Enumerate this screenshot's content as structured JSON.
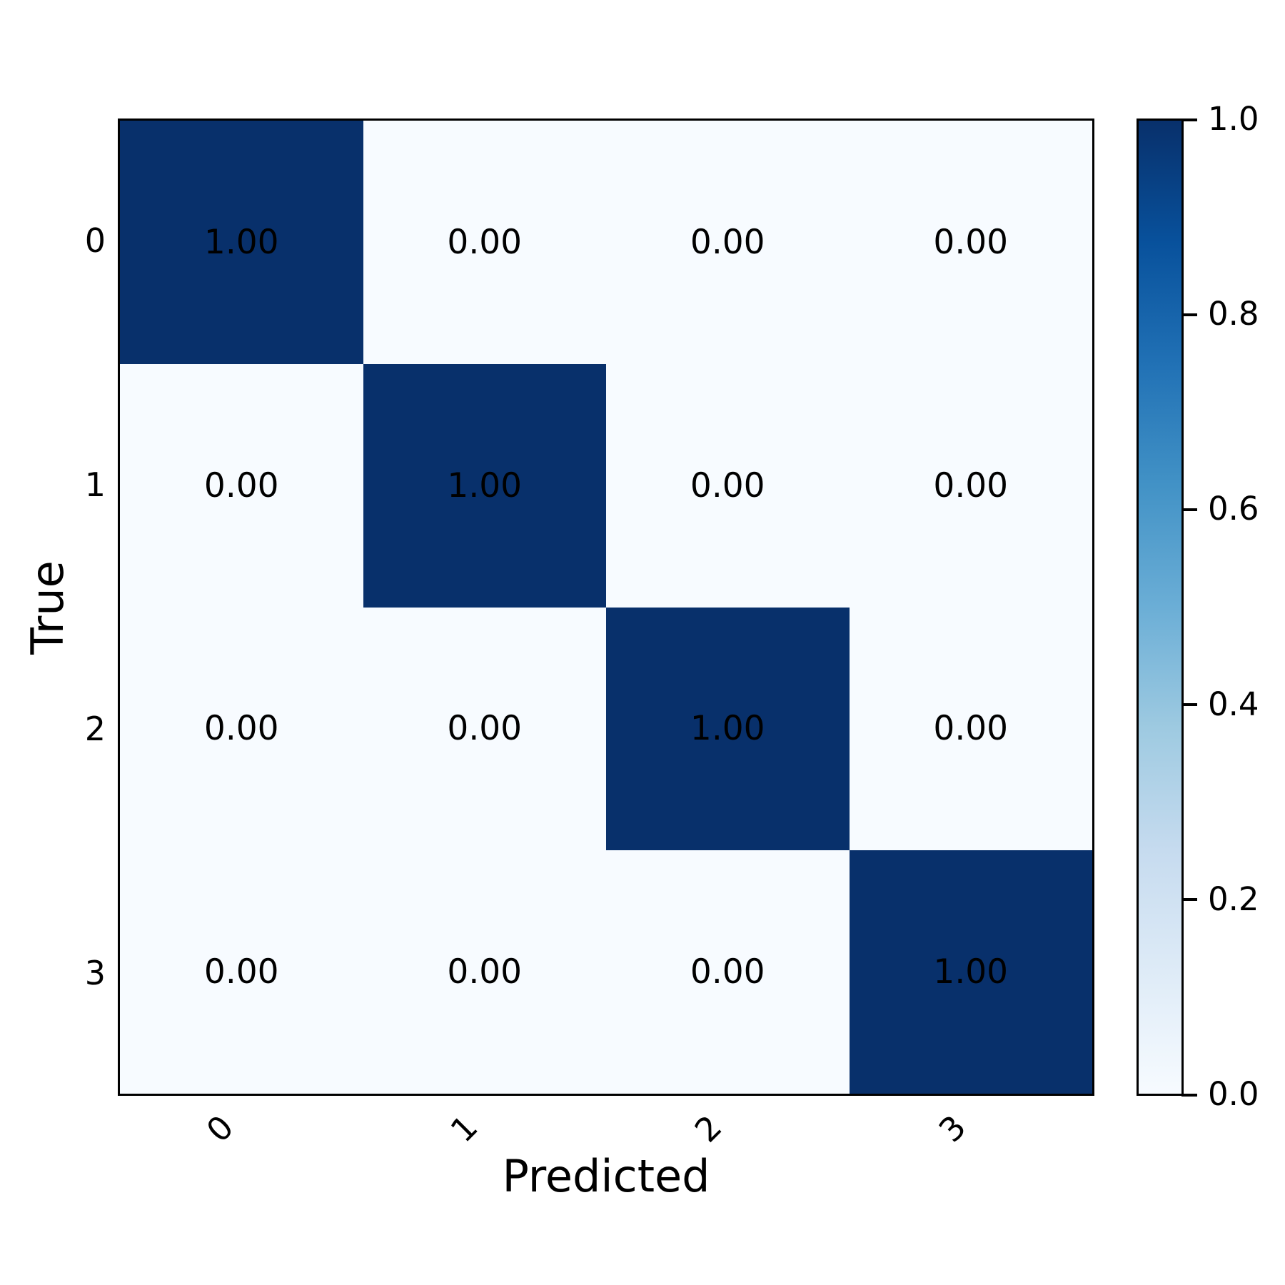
{
  "figure": {
    "background": "#ffffff",
    "text_color": "#000000"
  },
  "chart_data": {
    "type": "heatmap",
    "subtype": "confusion-matrix",
    "title": "",
    "xlabel": "Predicted",
    "ylabel": "True",
    "x_categories": [
      "0",
      "1",
      "2",
      "3"
    ],
    "y_categories": [
      "0",
      "1",
      "2",
      "3"
    ],
    "matrix": [
      [
        1.0,
        0.0,
        0.0,
        0.0
      ],
      [
        0.0,
        1.0,
        0.0,
        0.0
      ],
      [
        0.0,
        0.0,
        1.0,
        0.0
      ],
      [
        0.0,
        0.0,
        0.0,
        1.0
      ]
    ],
    "cell_labels": [
      [
        "1.00",
        "0.00",
        "0.00",
        "0.00"
      ],
      [
        "0.00",
        "1.00",
        "0.00",
        "0.00"
      ],
      [
        "0.00",
        "0.00",
        "1.00",
        "0.00"
      ],
      [
        "0.00",
        "0.00",
        "0.00",
        "1.00"
      ]
    ],
    "vmin": 0.0,
    "vmax": 1.0,
    "colormap": {
      "name": "Blues",
      "stops_high_to_low": [
        "#08306b",
        "#08519c",
        "#2171b5",
        "#4292c6",
        "#6baed6",
        "#9ecae1",
        "#c6dbef",
        "#deebf7",
        "#f7fbff"
      ]
    },
    "annotation_text_color": "#000000",
    "grid": false,
    "legend_position": "right-colorbar",
    "colorbar": {
      "tick_labels": [
        "1.0",
        "0.8",
        "0.6",
        "0.4",
        "0.2",
        "0.0"
      ],
      "tick_values": [
        1.0,
        0.8,
        0.6,
        0.4,
        0.2,
        0.0
      ]
    },
    "x_tick_rotation_deg": 45
  }
}
